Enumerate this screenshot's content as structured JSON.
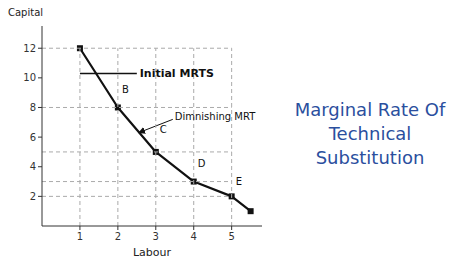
{
  "chart_data": {
    "type": "line",
    "title": "Marginal Rate Of\nTechnical\nSubstitution",
    "x_label": "Labour",
    "y_label": "Capital",
    "x": [
      1,
      2,
      3,
      4,
      5,
      5.5
    ],
    "values": [
      12,
      8,
      5,
      3,
      2,
      1
    ],
    "color": "#111111",
    "marker": "square",
    "xlim": [
      0,
      5.8
    ],
    "ylim": [
      0,
      13.5
    ],
    "xticks": [
      1,
      2,
      3,
      4,
      5
    ],
    "yticks": [
      2,
      4,
      6,
      8,
      10,
      12
    ],
    "grid": false,
    "guides": {
      "x": [
        1,
        2,
        3,
        4,
        5
      ],
      "y": [
        2,
        3,
        5,
        8,
        12
      ],
      "x_end": 5.0,
      "y_end": 12.0
    },
    "annotations": [
      {
        "text": "B",
        "x": 2.08,
        "y": 9.2
      },
      {
        "text": "C",
        "x": 3.08,
        "y": 6.5
      },
      {
        "text": "D",
        "x": 4.08,
        "y": 4.2
      },
      {
        "text": "E",
        "x": 5.08,
        "y": 3.0
      },
      {
        "text": "Initial MRTS",
        "x": 2.55,
        "y": 10.3,
        "line_x": [
          1.0,
          2.5
        ],
        "line_y": [
          10.3,
          10.3
        ]
      },
      {
        "text": "Dimnishing MRT",
        "x": 3.5,
        "y": 7.4,
        "arrow_to": [
          2.55,
          6.3
        ]
      }
    ]
  }
}
